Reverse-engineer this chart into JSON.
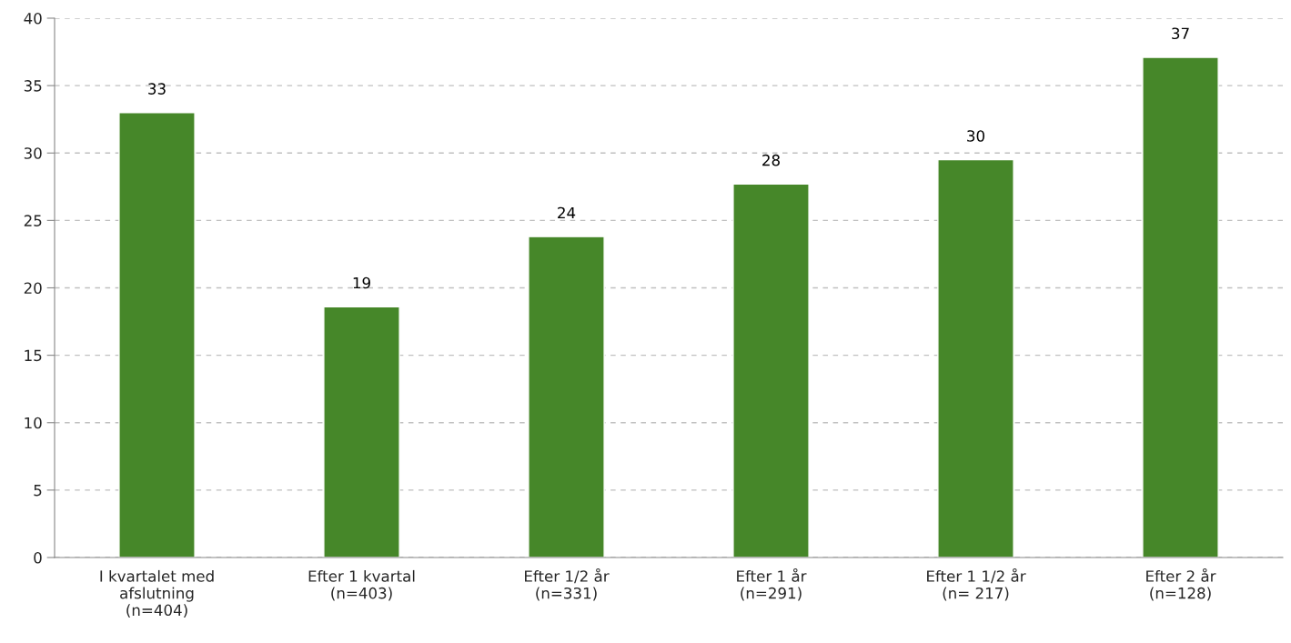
{
  "chart_data": {
    "type": "bar",
    "categories": [
      "I kvartalet med\nafslutning\n(n=404)",
      "Efter 1 kvartal\n(n=403)",
      "Efter 1/2 år\n(n=331)",
      "Efter 1 år\n(n=291)",
      "Efter 1 1/2 år\n(n= 217)",
      "Efter 2 år\n(n=128)"
    ],
    "values": [
      33.0,
      18.6,
      23.8,
      27.7,
      29.5,
      37.1
    ],
    "value_labels": [
      "33",
      "19",
      "24",
      "28",
      "30",
      "37"
    ],
    "color": "#468729",
    "ylim": [
      0,
      40
    ],
    "yticks": [
      0,
      5,
      10,
      15,
      20,
      25,
      30,
      35,
      40
    ],
    "grid": "y",
    "legend": false
  }
}
